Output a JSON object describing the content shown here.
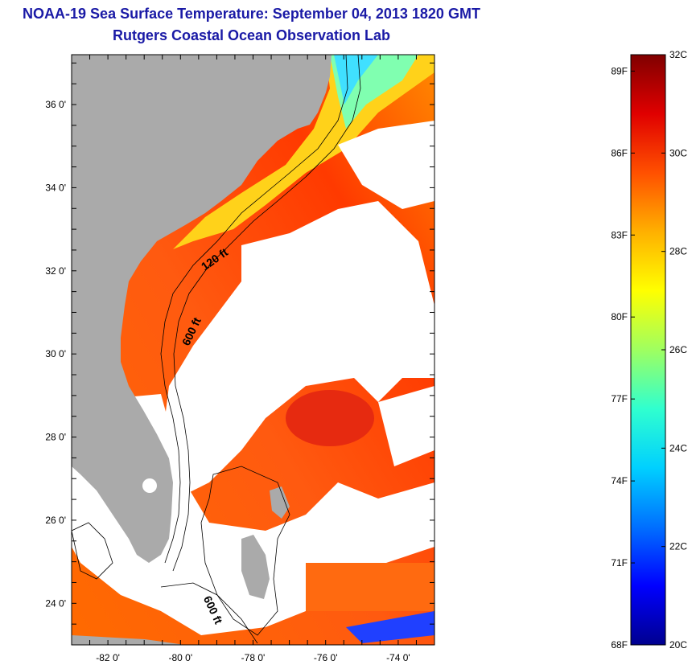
{
  "header": {
    "title": "NOAA-19 Sea Surface Temperature:  September 04, 2013 1820 GMT",
    "subtitle": "Rutgers Coastal Ocean Observation Lab"
  },
  "map": {
    "lon_range": [
      -83,
      -73
    ],
    "lat_range": [
      23,
      37.2
    ],
    "lon_ticks": [
      {
        "value": -82,
        "label": "-82 0'"
      },
      {
        "value": -80,
        "label": "-80 0'"
      },
      {
        "value": -78,
        "label": "-78 0'"
      },
      {
        "value": -76,
        "label": "-76 0'"
      },
      {
        "value": -74,
        "label": "-74 0'"
      }
    ],
    "lat_ticks": [
      {
        "value": 36,
        "label": "36 0'"
      },
      {
        "value": 34,
        "label": "34 0'"
      },
      {
        "value": 32,
        "label": "32 0'"
      },
      {
        "value": 30,
        "label": "30 0'"
      },
      {
        "value": 28,
        "label": "28 0'"
      },
      {
        "value": 26,
        "label": "26 0'"
      },
      {
        "value": 24,
        "label": "24 0'"
      }
    ],
    "contour_labels": [
      {
        "text": "120 ft",
        "lon": -79.0,
        "lat": 32.2,
        "rotate": -35
      },
      {
        "text": "600 ft",
        "lon": -79.6,
        "lat": 30.5,
        "rotate": -65
      },
      {
        "text": "600 ft",
        "lon": -79.2,
        "lat": 23.8,
        "rotate": 65
      }
    ],
    "land_color": "#aaaaaa",
    "cloud_color": "#ffffff"
  },
  "colorbar": {
    "range_c": [
      20,
      32
    ],
    "celsius_labels": [
      {
        "value": 32,
        "label": "32C"
      },
      {
        "value": 30,
        "label": "30C"
      },
      {
        "value": 28,
        "label": "28C"
      },
      {
        "value": 26,
        "label": "26C"
      },
      {
        "value": 24,
        "label": "24C"
      },
      {
        "value": 22,
        "label": "22C"
      },
      {
        "value": 20,
        "label": "20C"
      }
    ],
    "fahrenheit_labels": [
      {
        "value": 89,
        "label": "89F"
      },
      {
        "value": 86,
        "label": "86F"
      },
      {
        "value": 83,
        "label": "83F"
      },
      {
        "value": 80,
        "label": "80F"
      },
      {
        "value": 77,
        "label": "77F"
      },
      {
        "value": 74,
        "label": "74F"
      },
      {
        "value": 71,
        "label": "71F"
      },
      {
        "value": 68,
        "label": "68F"
      }
    ],
    "colors": [
      "#00008f",
      "#0000ff",
      "#0070ff",
      "#00d0ff",
      "#30ffcf",
      "#9fff60",
      "#ffff00",
      "#ffb000",
      "#ff5000",
      "#e00000",
      "#800000"
    ]
  }
}
